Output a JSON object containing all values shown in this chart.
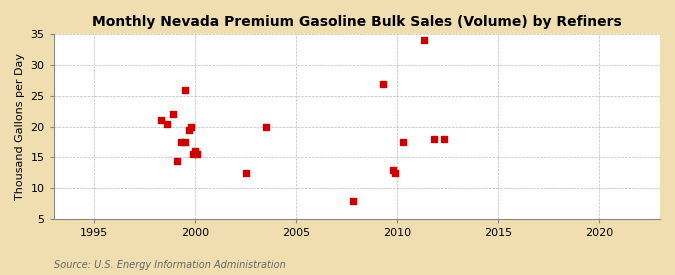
{
  "title": "Monthly Nevada Premium Gasoline Bulk Sales (Volume) by Refiners",
  "ylabel": "Thousand Gallons per Day",
  "source": "Source: U.S. Energy Information Administration",
  "figure_bg": "#f0deb0",
  "plot_bg": "#ffffff",
  "marker_color": "#cc0000",
  "marker": "s",
  "marker_size": 4,
  "xlim": [
    1993,
    2023
  ],
  "ylim": [
    5,
    35
  ],
  "xticks": [
    1995,
    2000,
    2005,
    2010,
    2015,
    2020
  ],
  "yticks": [
    5,
    10,
    15,
    20,
    25,
    30,
    35
  ],
  "x_data": [
    1998.3,
    1998.6,
    1998.9,
    1999.1,
    1999.3,
    1999.5,
    1999.5,
    1999.7,
    1999.8,
    1999.9,
    2000.0,
    2000.1,
    2002.5,
    2003.5,
    2007.8,
    2009.3,
    2009.8,
    2009.9,
    2010.3,
    2011.3,
    2011.8,
    2012.3
  ],
  "y_data": [
    21.0,
    20.5,
    22.0,
    14.5,
    17.5,
    17.5,
    26.0,
    19.5,
    20.0,
    15.5,
    16.0,
    15.5,
    12.5,
    20.0,
    8.0,
    27.0,
    13.0,
    12.5,
    17.5,
    34.0,
    18.0,
    18.0
  ],
  "grid_color": "#aaaaaa",
  "grid_linestyle": "--",
  "grid_linewidth": 0.5,
  "source_color": "#666666",
  "title_fontsize": 10,
  "tick_fontsize": 8,
  "ylabel_fontsize": 8
}
